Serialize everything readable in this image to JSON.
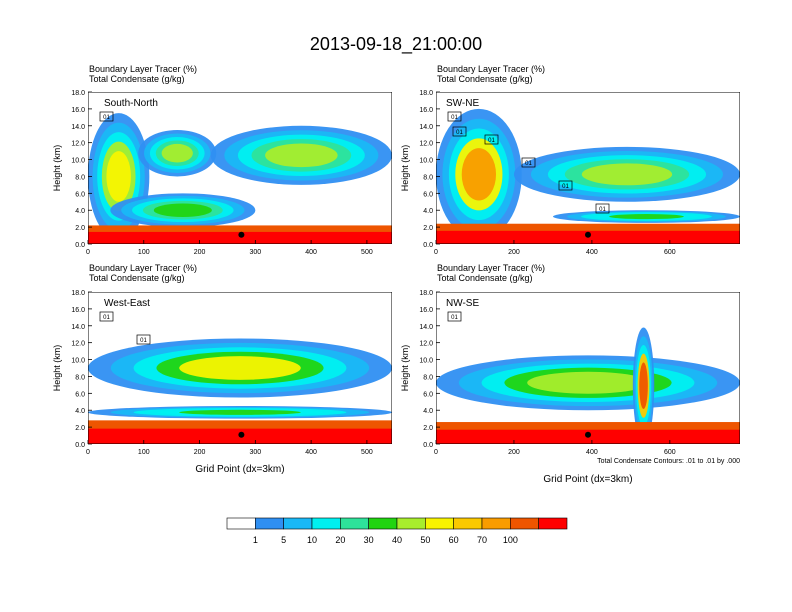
{
  "chart_data": {
    "type": "heatmap",
    "title": "2013-09-18_21:00:00",
    "colorbar": {
      "labels": [
        "1",
        "5",
        "10",
        "20",
        "30",
        "40",
        "50",
        "60",
        "70",
        "100"
      ],
      "colors": [
        "#ffffff",
        "#2f8ff2",
        "#19b8f6",
        "#00f0f0",
        "#2ee29a",
        "#21d411",
        "#a8ed2c",
        "#f8f400",
        "#fbc900",
        "#f99c00",
        "#ee5500",
        "#ff0000"
      ]
    },
    "panels": [
      {
        "id": "south-north",
        "label": "South-North",
        "subtitle1": "Boundary Layer Tracer   (%)",
        "subtitle2": "Total Condensate   (g/kg)",
        "ylabel": "Height (km)",
        "xlabel": "",
        "ylim": [
          0,
          18
        ],
        "xlim": [
          0,
          545
        ],
        "yticks": [
          "0.0",
          "2.0",
          "4.0",
          "6.0",
          "8.0",
          "10.0",
          "12.0",
          "14.0",
          "16.0",
          "18.0"
        ],
        "xticks": [
          "0",
          "100",
          "200",
          "300",
          "400",
          "500"
        ],
        "boundary_layer_top_km": 2.2,
        "condensate_layers": [
          {
            "x0": 0,
            "x1": 110,
            "z0": 0.5,
            "z1": 15.5,
            "level": 0.45
          },
          {
            "x0": 90,
            "x1": 230,
            "z0": 8,
            "z1": 13.5,
            "level": 0.3
          },
          {
            "x0": 220,
            "x1": 545,
            "z0": 7,
            "z1": 14,
            "level": 0.3
          },
          {
            "x0": 40,
            "x1": 300,
            "z0": 2,
            "z1": 6,
            "level": 0.25
          }
        ],
        "contour_labels": [
          "01"
        ],
        "marker": {
          "x": 275,
          "z": 1.1
        }
      },
      {
        "id": "sw-ne",
        "label": "SW-NE",
        "subtitle1": "Boundary Layer Tracer   (%)",
        "subtitle2": "Total Condensate   (g/kg)",
        "ylabel": "Height (km)",
        "xlabel": "",
        "ylim": [
          0,
          18
        ],
        "xlim": [
          0,
          780
        ],
        "yticks": [
          "0.0",
          "2.0",
          "4.0",
          "6.0",
          "8.0",
          "10.0",
          "12.0",
          "14.0",
          "16.0",
          "18.0"
        ],
        "xticks": [
          "0",
          "200",
          "400",
          "600"
        ],
        "boundary_layer_top_km": 2.4,
        "condensate_layers": [
          {
            "x0": 0,
            "x1": 220,
            "z0": 0.5,
            "z1": 16,
            "level": 0.6
          },
          {
            "x0": 200,
            "x1": 780,
            "z0": 5,
            "z1": 11.5,
            "level": 0.3
          },
          {
            "x0": 300,
            "x1": 780,
            "z0": 2.5,
            "z1": 4,
            "level": 0.2
          }
        ],
        "contour_labels": [
          "01",
          "01",
          "01",
          "01",
          "01",
          "01"
        ],
        "marker": {
          "x": 390,
          "z": 1.1
        }
      },
      {
        "id": "west-east",
        "label": "West-East",
        "subtitle1": "Boundary Layer Tracer   (%)",
        "subtitle2": "Total Condensate   (g/kg)",
        "ylabel": "Height (km)",
        "xlabel": "Grid Point (dx=3km)",
        "ylim": [
          0,
          18
        ],
        "xlim": [
          0,
          545
        ],
        "yticks": [
          "0.0",
          "2.0",
          "4.0",
          "6.0",
          "8.0",
          "10.0",
          "12.0",
          "14.0",
          "16.0",
          "18.0"
        ],
        "xticks": [
          "0",
          "100",
          "200",
          "300",
          "400",
          "500"
        ],
        "boundary_layer_top_km": 2.8,
        "condensate_layers": [
          {
            "x0": 0,
            "x1": 545,
            "z0": 5.5,
            "z1": 12.5,
            "level": 0.4
          },
          {
            "x0": 0,
            "x1": 545,
            "z0": 3,
            "z1": 4.5,
            "level": 0.2
          }
        ],
        "contour_labels": [
          "01",
          "01"
        ],
        "marker": {
          "x": 275,
          "z": 1.1
        }
      },
      {
        "id": "nw-se",
        "label": "NW-SE",
        "subtitle1": "Boundary Layer Tracer   (%)",
        "subtitle2": "Total Condensate   (g/kg)",
        "ylabel": "Height (km)",
        "xlabel": "Grid Point (dx=3km)",
        "ylim": [
          0,
          18
        ],
        "xlim": [
          0,
          780
        ],
        "yticks": [
          "0.0",
          "2.0",
          "4.0",
          "6.0",
          "8.0",
          "10.0",
          "12.0",
          "14.0",
          "16.0",
          "18.0"
        ],
        "xticks": [
          "0",
          "200",
          "400",
          "600"
        ],
        "boundary_layer_top_km": 2.6,
        "condensate_layers": [
          {
            "x0": 0,
            "x1": 780,
            "z0": 4,
            "z1": 10.5,
            "level": 0.35
          },
          {
            "x0": 505,
            "x1": 560,
            "z0": 0,
            "z1": 13.8,
            "level": 0.7
          }
        ],
        "contour_labels": [
          "01"
        ],
        "marker": {
          "x": 390,
          "z": 1.1
        },
        "footnote": "Total Condensate Contours: .01 to .01 by .000"
      }
    ]
  }
}
